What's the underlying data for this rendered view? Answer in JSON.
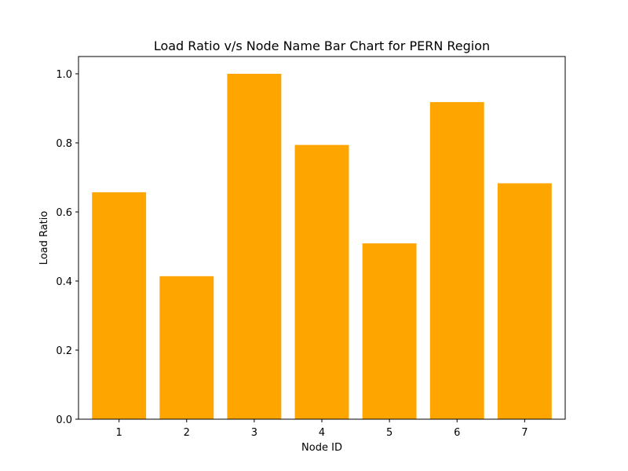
{
  "chart_data": {
    "type": "bar",
    "title": "Load Ratio v/s Node Name Bar Chart for PERN Region",
    "xlabel": "Node ID",
    "ylabel": "Load Ratio",
    "categories": [
      "1",
      "2",
      "3",
      "4",
      "5",
      "6",
      "7"
    ],
    "values": [
      0.657,
      0.414,
      1.0,
      0.794,
      0.509,
      0.918,
      0.683
    ],
    "ylim": [
      0,
      1.05
    ],
    "yticks": [
      0.0,
      0.2,
      0.4,
      0.6,
      0.8,
      1.0
    ],
    "ytick_labels": [
      "0.0",
      "0.2",
      "0.4",
      "0.6",
      "0.8",
      "1.0"
    ],
    "bar_color": "#ffa500",
    "grid": false,
    "legend": "none"
  }
}
